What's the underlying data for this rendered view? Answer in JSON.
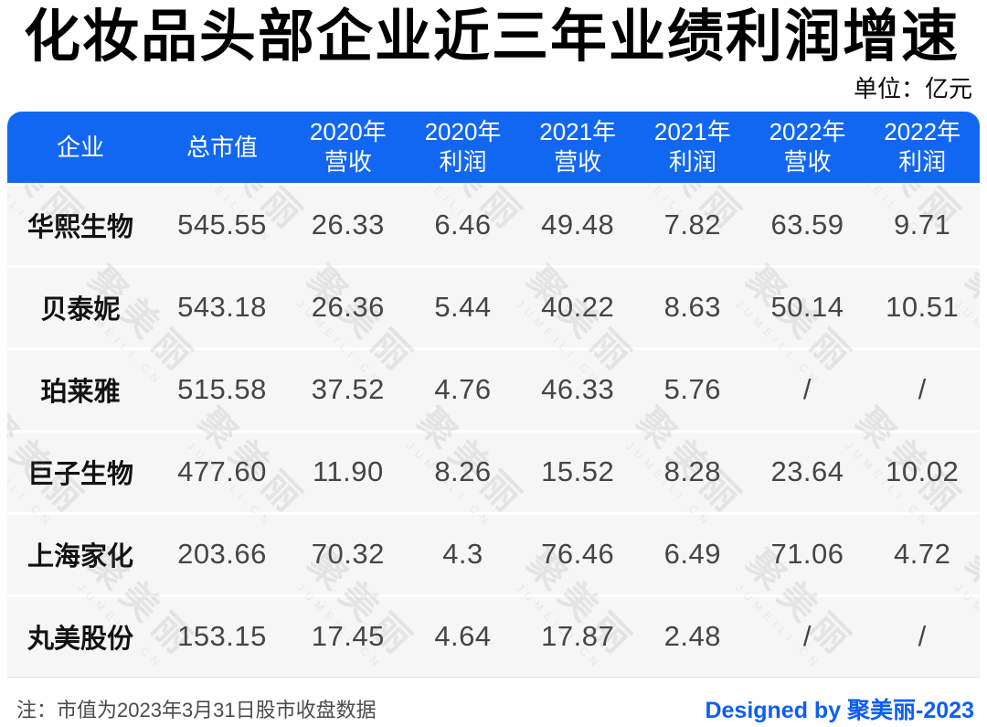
{
  "title": "化妆品头部企业近三年业绩利润增速",
  "unit_label": "单位：亿元",
  "colors": {
    "accent": "#1267F2",
    "row_bg": "#F6F6F6",
    "value_text": "#454545"
  },
  "watermark": {
    "cjk": "聚美丽",
    "latin": "JUMEILI.CN"
  },
  "header": {
    "columns_lines": [
      [
        "企业"
      ],
      [
        "总市值"
      ],
      [
        "2020年",
        "营收"
      ],
      [
        "2020年",
        "利润"
      ],
      [
        "2021年",
        "营收"
      ],
      [
        "2021年",
        "利润"
      ],
      [
        "2022年",
        "营收"
      ],
      [
        "2022年",
        "利润"
      ]
    ]
  },
  "chart_data": {
    "type": "table",
    "title": "化妆品头部企业近三年业绩利润增速",
    "unit": "亿元",
    "columns": [
      "企业",
      "总市值",
      "2020年营收",
      "2020年利润",
      "2021年营收",
      "2021年利润",
      "2022年营收",
      "2022年利润"
    ],
    "rows": [
      [
        "华熙生物",
        "545.55",
        "26.33",
        "6.46",
        "49.48",
        "7.82",
        "63.59",
        "9.71"
      ],
      [
        "贝泰妮",
        "543.18",
        "26.36",
        "5.44",
        "40.22",
        "8.63",
        "50.14",
        "10.51"
      ],
      [
        "珀莱雅",
        "515.58",
        "37.52",
        "4.76",
        "46.33",
        "5.76",
        "/",
        "/"
      ],
      [
        "巨子生物",
        "477.60",
        "11.90",
        "8.26",
        "15.52",
        "8.28",
        "23.64",
        "10.02"
      ],
      [
        "上海家化",
        "203.66",
        "70.32",
        "4.3",
        "76.46",
        "6.49",
        "71.06",
        "4.72"
      ],
      [
        "丸美股份",
        "153.15",
        "17.45",
        "4.64",
        "17.87",
        "2.48",
        "/",
        "/"
      ]
    ],
    "note": "注：市值为2023年3月31日股市收盘数据"
  },
  "footer": {
    "note": "注：市值为2023年3月31日股市收盘数据",
    "credit": "Designed by 聚美丽-2023"
  }
}
